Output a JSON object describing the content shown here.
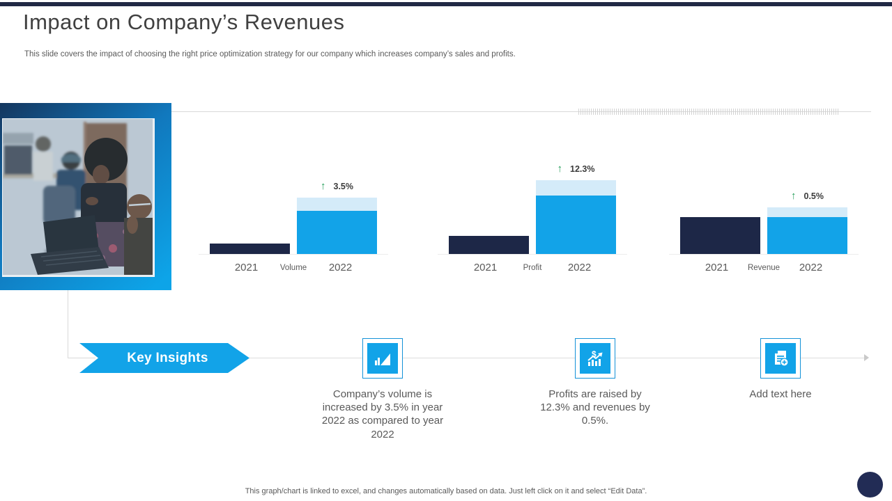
{
  "slide": {
    "title": "Impact on Company’s Revenues",
    "subtitle": "This slide covers the impact of choosing the right price optimization strategy for our company which increases company’s sales and profits.",
    "footer": "This graph/chart is linked to excel, and changes automatically based on data. Just left click on it and select “Edit Data”."
  },
  "ui": {
    "up_arrow_glyph": "↑",
    "accent_blue": "#12a3e8",
    "navy": "#1d2747",
    "light_cap_blue": "#d4ebf9",
    "green_arrow": "#219c57",
    "banner_label": "Key Insights"
  },
  "chart_data": [
    {
      "type": "bar",
      "metric_label": "Volume",
      "categories": [
        "2021",
        "2022"
      ],
      "delta_label": "3.5%",
      "units": "relative-height-px (no axis shown)",
      "bars": {
        "y2021": 15,
        "y2022_base": 62,
        "y2022_increase_cap": 19
      }
    },
    {
      "type": "bar",
      "metric_label": "Profit",
      "categories": [
        "2021",
        "2022"
      ],
      "delta_label": "12.3%",
      "units": "relative-height-px (no axis shown)",
      "bars": {
        "y2021": 26,
        "y2022_base": 84,
        "y2022_increase_cap": 22
      }
    },
    {
      "type": "bar",
      "metric_label": "Revenue",
      "categories": [
        "2021",
        "2022"
      ],
      "delta_label": "0.5%",
      "units": "relative-height-px (no axis shown)",
      "bars": {
        "y2021": 53,
        "y2022_base": 53,
        "y2022_increase_cap": 14
      }
    }
  ],
  "insights": {
    "items": [
      {
        "icon": "growth-chart-icon",
        "text": "Company’s volume is increased by 3.5% in year 2022 as compared to year 2022"
      },
      {
        "icon": "money-growth-icon",
        "text": "Profits are raised by 12.3% and revenues by 0.5%."
      },
      {
        "icon": "add-document-icon",
        "text": "Add text here"
      }
    ]
  }
}
